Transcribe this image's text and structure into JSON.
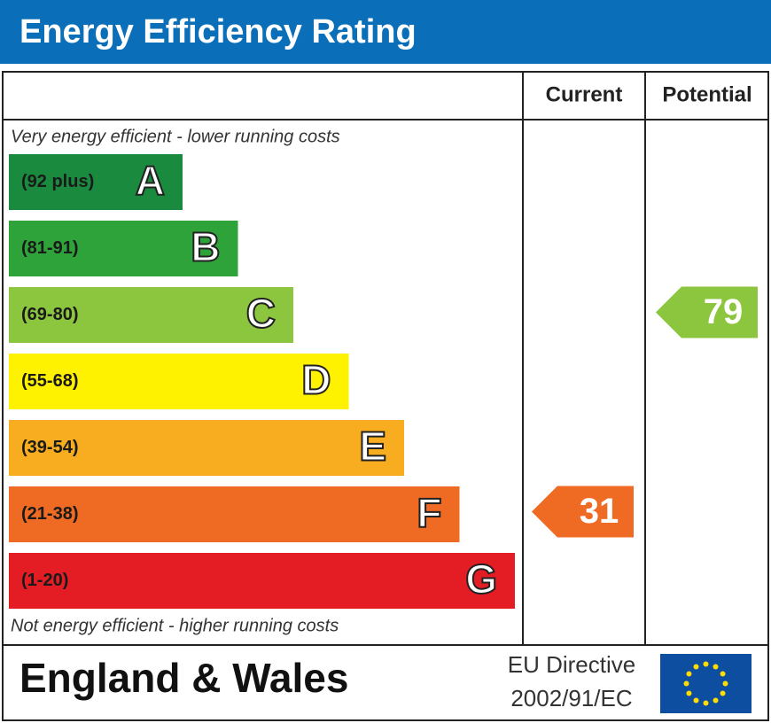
{
  "header": {
    "title": "Energy Efficiency Rating"
  },
  "columns": [
    "Current",
    "Potential"
  ],
  "top_note": "Very energy efficient - lower running costs",
  "bottom_note": "Not energy efficient - higher running costs",
  "bands": [
    {
      "range": "(92 plus)",
      "letter": "A",
      "color": "#1a8a3e"
    },
    {
      "range": "(81-91)",
      "letter": "B",
      "color": "#2ea33a"
    },
    {
      "range": "(69-80)",
      "letter": "C",
      "color": "#8cc63f"
    },
    {
      "range": "(55-68)",
      "letter": "D",
      "color": "#fff200"
    },
    {
      "range": "(39-54)",
      "letter": "E",
      "color": "#f7ad1f"
    },
    {
      "range": "(21-38)",
      "letter": "F",
      "color": "#ef6b24"
    },
    {
      "range": "(1-20)",
      "letter": "G",
      "color": "#e31d23"
    }
  ],
  "ratings": {
    "current": 31,
    "potential": 79
  },
  "footer": {
    "region": "England & Wales",
    "directive_line1": "EU Directive",
    "directive_line2": "2002/91/EC"
  }
}
